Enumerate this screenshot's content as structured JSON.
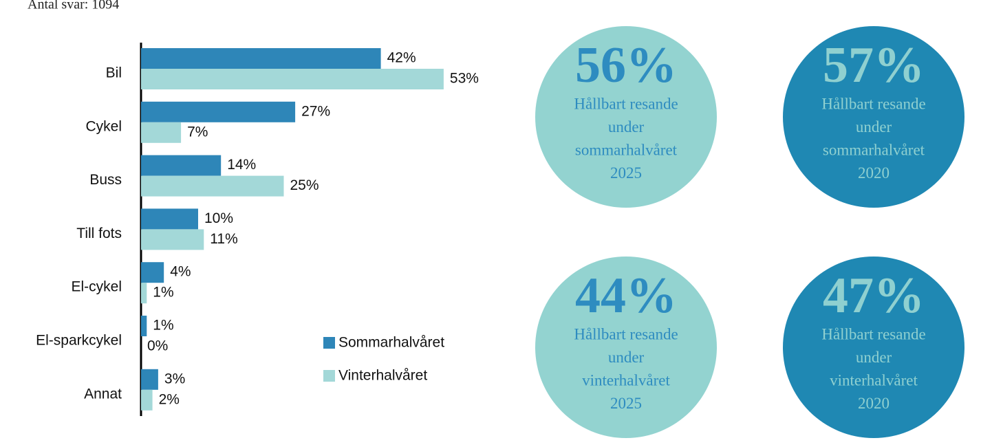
{
  "note": "Antal svar: 1094",
  "chart_data": {
    "type": "hbar",
    "categories": [
      "Bil",
      "Cykel",
      "Buss",
      "Till fots",
      "El-cykel",
      "El-sparkcykel",
      "Annat"
    ],
    "series": [
      {
        "name": "Sommarhalvåret",
        "color": "#2e86b8",
        "values": [
          42,
          27,
          14,
          10,
          4,
          1,
          3
        ],
        "value_labels": [
          "42%",
          "27%",
          "14%",
          "10%",
          "4%",
          "1%",
          "3%"
        ]
      },
      {
        "name": "Vinterhalvåret",
        "color": "#a3d8d8",
        "values": [
          53,
          7,
          25,
          11,
          1,
          0,
          2
        ],
        "value_labels": [
          "53%",
          "7%",
          "25%",
          "11%",
          "1%",
          "0%",
          "2%"
        ]
      }
    ],
    "xlim": [
      0,
      60
    ]
  },
  "highlights": [
    {
      "value": "56%",
      "lines": [
        "Hållbart resande",
        "under",
        "sommarhalvåret",
        "2025"
      ],
      "color": "#93d3d0",
      "text_color": "#2e8cc0"
    },
    {
      "value": "57%",
      "lines": [
        "Hållbart resande",
        "under",
        "sommarhalvåret",
        "2020"
      ],
      "color": "#1f88b3",
      "text_color": "#8fd0d0"
    },
    {
      "value": "44%",
      "lines": [
        "Hållbart resande",
        "under",
        "vinterhalvåret",
        "2025"
      ],
      "color": "#93d3d0",
      "text_color": "#2e8cc0"
    },
    {
      "value": "47%",
      "lines": [
        "Hållbart resande",
        "under",
        "vinterhalvåret",
        "2020"
      ],
      "color": "#1f88b3",
      "text_color": "#8fd0d0"
    }
  ]
}
